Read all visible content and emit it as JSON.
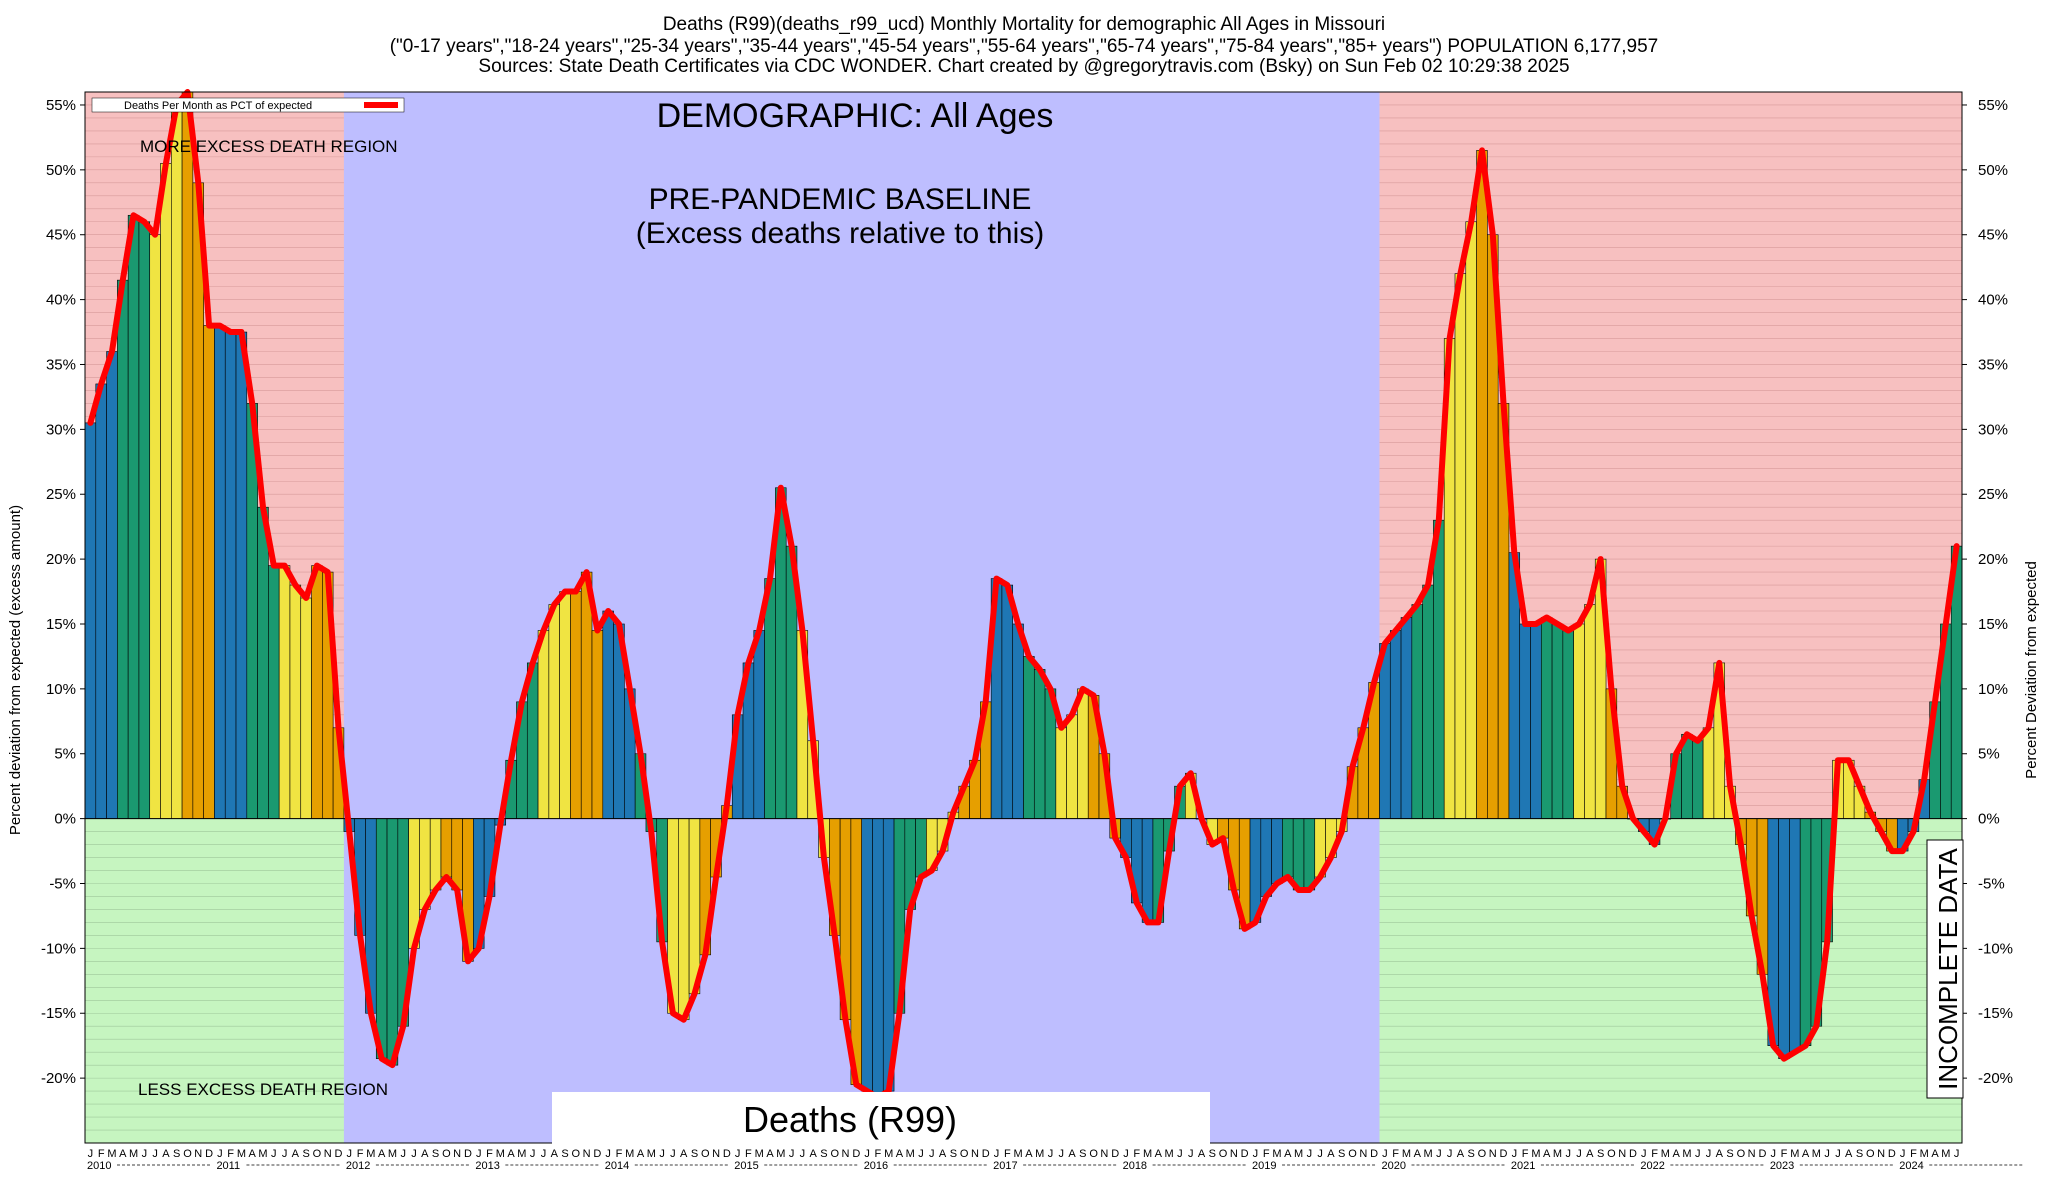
{
  "header": {
    "title_line1": "Deaths (R99)(deaths_r99_ucd) Monthly Mortality for demographic All Ages in Missouri",
    "title_line2": "(\"0-17 years\",\"18-24 years\",\"25-34 years\",\"35-44 years\",\"45-54 years\",\"55-64 years\",\"65-74 years\",\"75-84 years\",\"85+ years\") POPULATION 6,177,957",
    "title_line3": "Sources: State Death Certificates via CDC WONDER.               Chart created by @gregorytravis.com (Bsky) on Sun Feb 02 10:29:38 2025"
  },
  "annotations": {
    "demographic": "DEMOGRAPHIC: All Ages",
    "baseline_line1": "PRE-PANDEMIC BASELINE",
    "baseline_line2": "(Excess deaths relative to this)",
    "more_region": "MORE EXCESS DEATH REGION",
    "less_region": "LESS EXCESS DEATH REGION",
    "incomplete": "INCOMPLETE DATA",
    "cause_box": "Deaths (R99)"
  },
  "legend": {
    "label": "Deaths Per Month as PCT of expected",
    "placement": "top-left",
    "line_color": "#ff0000"
  },
  "colors": {
    "more_region": "#f7c0c0",
    "less_region": "#c6f5c0",
    "baseline_region": "#bebeff",
    "incomplete_hatch": "#c59a9a",
    "line": "#ff0000",
    "bar_q1": "#1f77b4",
    "bar_q2": "#1a9970",
    "bar_q3": "#f0e442",
    "bar_q4": "#e69f00"
  },
  "chart_data": {
    "type": "bar",
    "title": "Deaths (R99)(deaths_r99_ucd) Monthly Mortality for demographic All Ages in Missouri",
    "ylabel_left": "Percent deviation from expected (excess amount)",
    "ylabel_right": "Percent Deviation from expected",
    "ylim": [
      -25,
      56
    ],
    "yticks": [
      55,
      50,
      45,
      40,
      35,
      30,
      25,
      20,
      15,
      10,
      5,
      0,
      -5,
      -10,
      -15,
      -20
    ],
    "ytick_labels": [
      "55%",
      "50%",
      "45%",
      "40%",
      "35%",
      "30%",
      "25%",
      "20%",
      "15%",
      "10%",
      "5%",
      "0%",
      "-5%",
      "-10%",
      "-15%",
      "-20%"
    ],
    "grid": true,
    "start": "2010-01",
    "end": "2024-12",
    "month_letters": [
      "J",
      "F",
      "M",
      "A",
      "M",
      "J",
      "J",
      "A",
      "S",
      "O",
      "N",
      "D"
    ],
    "years": [
      "2010",
      "2011",
      "2012",
      "2013",
      "2014",
      "2015",
      "2016",
      "2017",
      "2018",
      "2019",
      "2020",
      "2021",
      "2022",
      "2023",
      "2024"
    ],
    "pre_pandemic_baseline": [
      "2012-01",
      "2019-12"
    ],
    "incomplete_data_from": "2024-07",
    "series": [
      {
        "name": "Deaths Per Month as PCT of expected",
        "values": [
          30.5,
          33.5,
          36.0,
          41.5,
          46.5,
          46.0,
          45.0,
          50.5,
          55.0,
          56.0,
          49.0,
          38.0,
          38.0,
          37.5,
          37.5,
          32.0,
          24.0,
          19.5,
          19.5,
          18.0,
          17.0,
          19.5,
          19.0,
          7.0,
          -1.0,
          -9.0,
          -15.0,
          -18.5,
          -19.0,
          -16.0,
          -10.0,
          -7.0,
          -5.5,
          -4.5,
          -5.5,
          -11.0,
          -10.0,
          -6.0,
          -0.5,
          4.5,
          9.0,
          12.0,
          14.5,
          16.5,
          17.5,
          17.5,
          19.0,
          14.5,
          16.0,
          15.0,
          10.0,
          5.0,
          -1.0,
          -9.5,
          -15.0,
          -15.5,
          -13.5,
          -10.5,
          -4.5,
          1.0,
          8.0,
          12.0,
          14.5,
          18.5,
          25.5,
          21.0,
          14.5,
          6.0,
          -3.0,
          -9.0,
          -15.5,
          -20.5,
          -21.0,
          -21.5,
          -21.0,
          -15.0,
          -7.0,
          -4.5,
          -4.0,
          -2.5,
          0.5,
          2.5,
          4.5,
          9.0,
          18.5,
          18.0,
          15.0,
          12.5,
          11.5,
          10.0,
          7.0,
          8.0,
          10.0,
          9.5,
          5.0,
          -1.5,
          -3.0,
          -6.5,
          -8.0,
          -8.0,
          -2.5,
          2.5,
          3.5,
          0.0,
          -2.0,
          -1.5,
          -5.5,
          -8.5,
          -8.0,
          -6.0,
          -5.0,
          -4.5,
          -5.5,
          -5.5,
          -4.5,
          -3.0,
          -1.0,
          4.0,
          7.0,
          10.5,
          13.5,
          14.5,
          15.5,
          16.5,
          18.0,
          23.0,
          37.0,
          42.0,
          46.0,
          51.5,
          45.0,
          32.0,
          20.5,
          15.0,
          15.0,
          15.5,
          15.0,
          14.5,
          15.0,
          16.5,
          20.0,
          10.0,
          2.5,
          0.0,
          -1.0,
          -2.0,
          0.0,
          5.0,
          6.5,
          6.0,
          7.0,
          12.0,
          2.5,
          -2.0,
          -7.5,
          -12.0,
          -17.5,
          -18.5,
          -18.0,
          -17.5,
          -16.0,
          -9.5,
          4.5,
          4.5,
          2.5,
          0.5,
          -1.0,
          -2.5,
          -2.5,
          -1.0,
          3.0,
          9.0,
          15.0,
          21.0
        ]
      }
    ]
  }
}
